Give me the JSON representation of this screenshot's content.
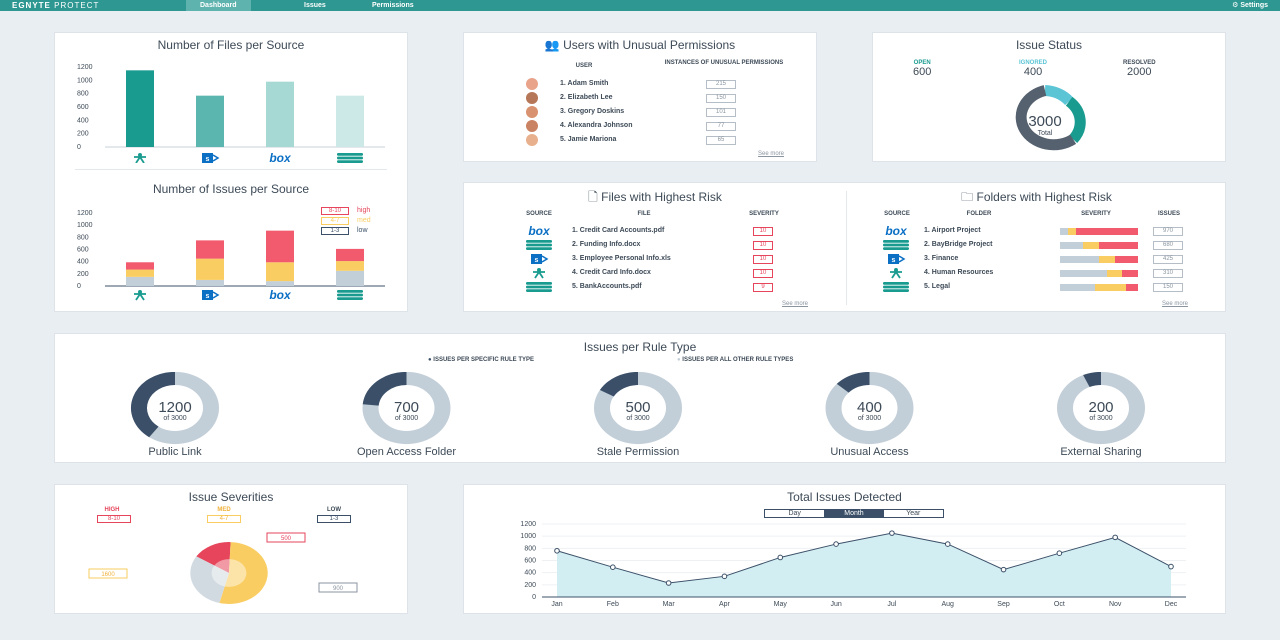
{
  "nav": {
    "brand_bold": "EGNYTE",
    "brand_thin": "PROTECT",
    "tabs": [
      "Dashboard",
      "Issues",
      "Permissions"
    ],
    "settings": "Settings"
  },
  "colors": {
    "teal": "#1a9b8f",
    "navy": "#3b5068",
    "gray": "#c2ced8",
    "red": "#e6455b",
    "yellow": "#f9cd62",
    "cyan": "#5bc5d6"
  },
  "files_per_source": {
    "title": "Number of Files per Source",
    "chart_data": {
      "type": "bar",
      "categories": [
        "egnyte",
        "sharepoint",
        "box",
        "database"
      ],
      "values": [
        1150,
        770,
        980,
        770
      ],
      "ylim": [
        0,
        1200
      ],
      "yticks": [
        "1200",
        "1000",
        "800",
        "600",
        "400",
        "200",
        "0"
      ],
      "title": "Number of Files per Source"
    }
  },
  "issues_per_source": {
    "title": "Number of Issues per Source",
    "legend": [
      {
        "range": "8-10",
        "label": "high"
      },
      {
        "range": "4-7",
        "label": "med"
      },
      {
        "range": "1-3",
        "label": "low"
      }
    ],
    "chart_data": {
      "type": "bar",
      "stacked": true,
      "categories": [
        "egnyte",
        "sharepoint",
        "box",
        "database"
      ],
      "series": [
        {
          "name": "low",
          "values": [
            150,
            100,
            80,
            250
          ]
        },
        {
          "name": "med",
          "values": [
            120,
            350,
            310,
            160
          ]
        },
        {
          "name": "high",
          "values": [
            120,
            300,
            520,
            200
          ]
        }
      ],
      "ylim": [
        0,
        1200
      ],
      "yticks": [
        "1200",
        "1000",
        "800",
        "600",
        "400",
        "200",
        "0"
      ],
      "title": "Number of Issues per Source"
    }
  },
  "users": {
    "title": "Users with Unusual Permissions",
    "col_user": "USER",
    "col_inst": "INSTANCES OF UNUSUAL PERMISSIONS",
    "rows": [
      {
        "name": "1. Adam Smith",
        "value": "215"
      },
      {
        "name": "2. Elizabeth Lee",
        "value": "150"
      },
      {
        "name": "3. Gregory Doskins",
        "value": "101"
      },
      {
        "name": "4. Alexandra Johnson",
        "value": "77"
      },
      {
        "name": "5. Jamie Mariona",
        "value": "65"
      }
    ],
    "more": "See more"
  },
  "issue_status": {
    "title": "Issue Status",
    "items": [
      {
        "label": "OPEN",
        "value": "600",
        "color": "#1a9b8f"
      },
      {
        "label": "IGNORED",
        "value": "400",
        "color": "#5bc5d6"
      },
      {
        "label": "RESOLVED",
        "value": "2000",
        "color": "#3d4a57"
      }
    ],
    "total": "3000",
    "total_label": "Total"
  },
  "files_risk": {
    "title": "Files with Highest Risk",
    "cols": [
      "SOURCE",
      "FILE",
      "SEVERITY"
    ],
    "rows": [
      {
        "source": "box",
        "file": "1. Credit Card Accounts.pdf",
        "sev": "10"
      },
      {
        "source": "database",
        "file": "2. Funding Info.docx",
        "sev": "10"
      },
      {
        "source": "sharepoint",
        "file": "3. Employee Personal Info.xls",
        "sev": "10"
      },
      {
        "source": "egnyte",
        "file": "4. Credit Card Info.docx",
        "sev": "10"
      },
      {
        "source": "database",
        "file": "5. BankAccounts.pdf",
        "sev": "9"
      }
    ],
    "more": "See more"
  },
  "folders_risk": {
    "title": "Folders with Highest Risk",
    "cols": [
      "SOURCE",
      "FOLDER",
      "SEVERITY",
      "ISSUES"
    ],
    "rows": [
      {
        "source": "box",
        "folder": "1. Airport Project",
        "issues": "970",
        "sev": [
          0.1,
          0.1,
          0.8
        ]
      },
      {
        "source": "database",
        "folder": "2. BayBridge Project",
        "issues": "680",
        "sev": [
          0.3,
          0.2,
          0.5
        ]
      },
      {
        "source": "sharepoint",
        "folder": "3. Finance",
        "issues": "425",
        "sev": [
          0.5,
          0.2,
          0.3
        ]
      },
      {
        "source": "egnyte",
        "folder": "4. Human Resources",
        "issues": "310",
        "sev": [
          0.6,
          0.2,
          0.2
        ]
      },
      {
        "source": "database",
        "folder": "5. Legal",
        "issues": "150",
        "sev": [
          0.45,
          0.4,
          0.15
        ]
      }
    ],
    "more": "See more"
  },
  "rule_type": {
    "title": "Issues per Rule Type",
    "legend_specific": "ISSUES PER SPECIFIC RULE TYPE",
    "legend_other": "ISSUES PER ALL OTHER RULE TYPES",
    "of_label": "of 3000",
    "items": [
      {
        "value": "1200",
        "name": "Public Link",
        "frac": 0.4
      },
      {
        "value": "700",
        "name": "Open Access Folder",
        "frac": 0.2333
      },
      {
        "value": "500",
        "name": "Stale Permission",
        "frac": 0.1667
      },
      {
        "value": "400",
        "name": "Unusual Access",
        "frac": 0.1333
      },
      {
        "value": "200",
        "name": "External Sharing",
        "frac": 0.0667
      }
    ]
  },
  "severities": {
    "title": "Issue Severities",
    "legend": [
      {
        "label": "HIGH",
        "range": "8-10"
      },
      {
        "label": "MED",
        "range": "4-7"
      },
      {
        "label": "LOW",
        "range": "1-3"
      }
    ],
    "chart_data": {
      "type": "pie",
      "labels": [
        "high",
        "med",
        "low"
      ],
      "values": [
        500,
        1600,
        900
      ]
    }
  },
  "total_issues": {
    "title": "Total Issues Detected",
    "toggle": [
      "Day",
      "Month",
      "Year"
    ],
    "active": "Month",
    "chart_data": {
      "type": "area",
      "x": [
        "Jan",
        "Feb",
        "Mar",
        "Apr",
        "May",
        "Jun",
        "Jul",
        "Aug",
        "Sep",
        "Oct",
        "Nov",
        "Dec"
      ],
      "values": [
        760,
        490,
        230,
        340,
        650,
        870,
        1050,
        870,
        450,
        720,
        980,
        500
      ],
      "ylim": [
        0,
        1200
      ],
      "yticks": [
        "1200",
        "1000",
        "800",
        "600",
        "400",
        "200",
        "0"
      ],
      "title": "Total Issues Detected"
    }
  }
}
